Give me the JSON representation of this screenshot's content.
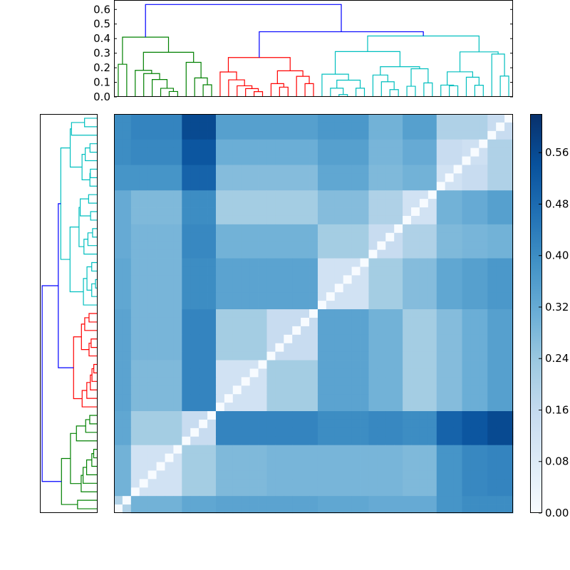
{
  "chart_data": [
    {
      "type": "heatmap",
      "title": "",
      "n_leaves": 47,
      "leaf_groups": [
        {
          "id": "G1",
          "leaves": [
            0,
            1
          ]
        },
        {
          "id": "G2",
          "leaves": [
            2,
            3,
            4,
            5,
            6,
            7
          ]
        },
        {
          "id": "G3",
          "leaves": [
            8,
            9,
            10,
            11
          ]
        },
        {
          "id": "R1",
          "leaves": [
            12,
            13,
            14,
            15,
            16,
            17
          ]
        },
        {
          "id": "R2",
          "leaves": [
            18,
            19,
            20,
            21,
            22,
            23
          ]
        },
        {
          "id": "C1",
          "leaves": [
            24,
            25,
            26,
            27,
            28,
            29
          ]
        },
        {
          "id": "C2",
          "leaves": [
            30,
            31,
            32,
            33
          ]
        },
        {
          "id": "C3",
          "leaves": [
            34,
            35,
            36,
            37
          ]
        },
        {
          "id": "C4",
          "leaves": [
            38,
            39,
            40
          ]
        },
        {
          "id": "C5",
          "leaves": [
            41,
            42,
            43
          ]
        },
        {
          "id": "C6",
          "leaves": [
            44,
            45,
            46
          ]
        }
      ],
      "block_mean_values": [
        [
          0.2,
          0.3,
          0.33,
          0.34,
          0.34,
          0.33,
          0.32,
          0.32,
          0.38,
          0.4,
          0.4
        ],
        [
          0.3,
          0.12,
          0.22,
          0.28,
          0.29,
          0.29,
          0.29,
          0.28,
          0.38,
          0.41,
          0.42
        ],
        [
          0.33,
          0.22,
          0.15,
          0.42,
          0.42,
          0.4,
          0.41,
          0.4,
          0.5,
          0.53,
          0.56
        ],
        [
          0.34,
          0.28,
          0.42,
          0.12,
          0.22,
          0.34,
          0.3,
          0.22,
          0.27,
          0.31,
          0.35
        ],
        [
          0.34,
          0.29,
          0.42,
          0.22,
          0.15,
          0.34,
          0.3,
          0.22,
          0.27,
          0.31,
          0.35
        ],
        [
          0.33,
          0.29,
          0.4,
          0.34,
          0.34,
          0.12,
          0.22,
          0.27,
          0.33,
          0.35,
          0.37
        ],
        [
          0.32,
          0.29,
          0.41,
          0.3,
          0.3,
          0.22,
          0.15,
          0.2,
          0.28,
          0.29,
          0.3
        ],
        [
          0.32,
          0.28,
          0.4,
          0.22,
          0.22,
          0.27,
          0.2,
          0.12,
          0.3,
          0.32,
          0.35
        ],
        [
          0.38,
          0.38,
          0.5,
          0.27,
          0.27,
          0.33,
          0.28,
          0.3,
          0.12,
          0.15,
          0.2
        ],
        [
          0.4,
          0.41,
          0.53,
          0.31,
          0.31,
          0.35,
          0.29,
          0.32,
          0.15,
          0.13,
          0.2
        ],
        [
          0.4,
          0.42,
          0.56,
          0.35,
          0.35,
          0.37,
          0.3,
          0.35,
          0.2,
          0.2,
          0.15
        ]
      ],
      "diagonal_value": 0.0,
      "colormap": "Blues",
      "colormap_stops": [
        "#f7fbff",
        "#deebf7",
        "#c6dbef",
        "#9ecae1",
        "#6baed6",
        "#4292c6",
        "#2171b5",
        "#08519c",
        "#08306b"
      ],
      "vmin": 0.0,
      "vmax": 0.62,
      "colorbar_ticks": [
        "0.00",
        "0.08",
        "0.16",
        "0.24",
        "0.32",
        "0.40",
        "0.48",
        "0.56"
      ]
    },
    {
      "type": "dendrogram",
      "orientation": "top and left",
      "axis_range": [
        0,
        0.66
      ],
      "axis_ticks": [
        "0.0",
        "0.1",
        "0.2",
        "0.3",
        "0.4",
        "0.5",
        "0.6"
      ],
      "above_threshold_color": "#0000ff",
      "tree": {
        "h": 0.634,
        "c": [
          {
            "h": 0.41,
            "color": "#008000",
            "c": [
              {
                "h": 0.224,
                "c": [
                  0,
                  1
                ]
              },
              {
                "h": 0.306,
                "c": [
                  {
                    "h": 0.182,
                    "c": [
                      2,
                      {
                        "h": 0.16,
                        "c": [
                          3,
                          {
                            "h": 0.119,
                            "c": [
                              4,
                              {
                                "h": 0.059,
                                "c": [
                                  5,
                                  {
                                    "h": 0.037,
                                    "c": [
                                      6,
                                      7
                                    ]
                                  }
                                ]
                              }
                            ]
                          }
                        ]
                      }
                    ]
                  },
                  {
                    "h": 0.237,
                    "c": [
                      8,
                      {
                        "h": 0.13,
                        "c": [
                          9,
                          {
                            "h": 0.083,
                            "c": [
                              10,
                              11
                            ]
                          }
                        ]
                      }
                    ]
                  }
                ]
              }
            ]
          },
          {
            "h": 0.447,
            "c": [
              {
                "h": 0.27,
                "color": "#ff0000",
                "c": [
                  {
                    "h": 0.171,
                    "c": [
                      12,
                      {
                        "h": 0.117,
                        "c": [
                          13,
                          {
                            "h": 0.076,
                            "c": [
                              14,
                              {
                                "h": 0.057,
                                "c": [
                                  15,
                                  {
                                    "h": 0.036,
                                    "c": [
                                      16,
                                      17
                                    ]
                                  }
                                ]
                              }
                            ]
                          }
                        ]
                      }
                    ]
                  },
                  {
                    "h": 0.179,
                    "c": [
                      {
                        "h": 0.091,
                        "c": [
                          18,
                          {
                            "h": 0.067,
                            "c": [
                              19,
                              20
                            ]
                          }
                        ]
                      },
                      {
                        "h": 0.141,
                        "c": [
                          21,
                          {
                            "h": 0.091,
                            "c": [
                              22,
                              23
                            ]
                          }
                        ]
                      }
                    ]
                  }
                ]
              },
              {
                "h": 0.418,
                "color": "#00bfbf",
                "c": [
                  {
                    "h": 0.311,
                    "c": [
                      {
                        "h": 0.156,
                        "c": [
                          24,
                          {
                            "h": 0.115,
                            "c": [
                              {
                                "h": 0.06,
                                "c": [
                                  25,
                                  {
                                    "h": 0.016,
                                    "c": [
                                      26,
                                      27
                                    ]
                                  }
                                ]
                              },
                              {
                                "h": 0.06,
                                "c": [
                                  28,
                                  29
                                ]
                              }
                            ]
                          }
                        ]
                      },
                      {
                        "h": 0.207,
                        "c": [
                          {
                            "h": 0.15,
                            "c": [
                              30,
                              {
                                "h": 0.104,
                                "c": [
                                  31,
                                  {
                                    "h": 0.05,
                                    "c": [
                                      32,
                                      33
                                    ]
                                  }
                                ]
                              }
                            ]
                          },
                          {
                            "h": 0.193,
                            "c": [
                              {
                                "h": 0.073,
                                "c": [
                                  34,
                                  35
                                ]
                              },
                              {
                                "h": 0.096,
                                "c": [
                                  36,
                                  37
                                ]
                              }
                            ]
                          }
                        ]
                      }
                    ]
                  },
                  {
                    "h": 0.309,
                    "c": [
                      {
                        "h": 0.172,
                        "c": [
                          {
                            "h": 0.081,
                            "c": [
                              38,
                              {
                                "h": 0.076,
                                "c": [
                                  39,
                                  40
                                ]
                              }
                            ]
                          },
                          {
                            "h": 0.135,
                            "c": [
                              41,
                              {
                                "h": 0.08,
                                "c": [
                                  42,
                                  43
                                ]
                              }
                            ]
                          }
                        ]
                      },
                      {
                        "h": 0.294,
                        "c": [
                          44,
                          {
                            "h": 0.143,
                            "c": [
                              45,
                              46
                            ]
                          }
                        ]
                      }
                    ]
                  }
                ]
              }
            ]
          }
        ]
      }
    }
  ]
}
